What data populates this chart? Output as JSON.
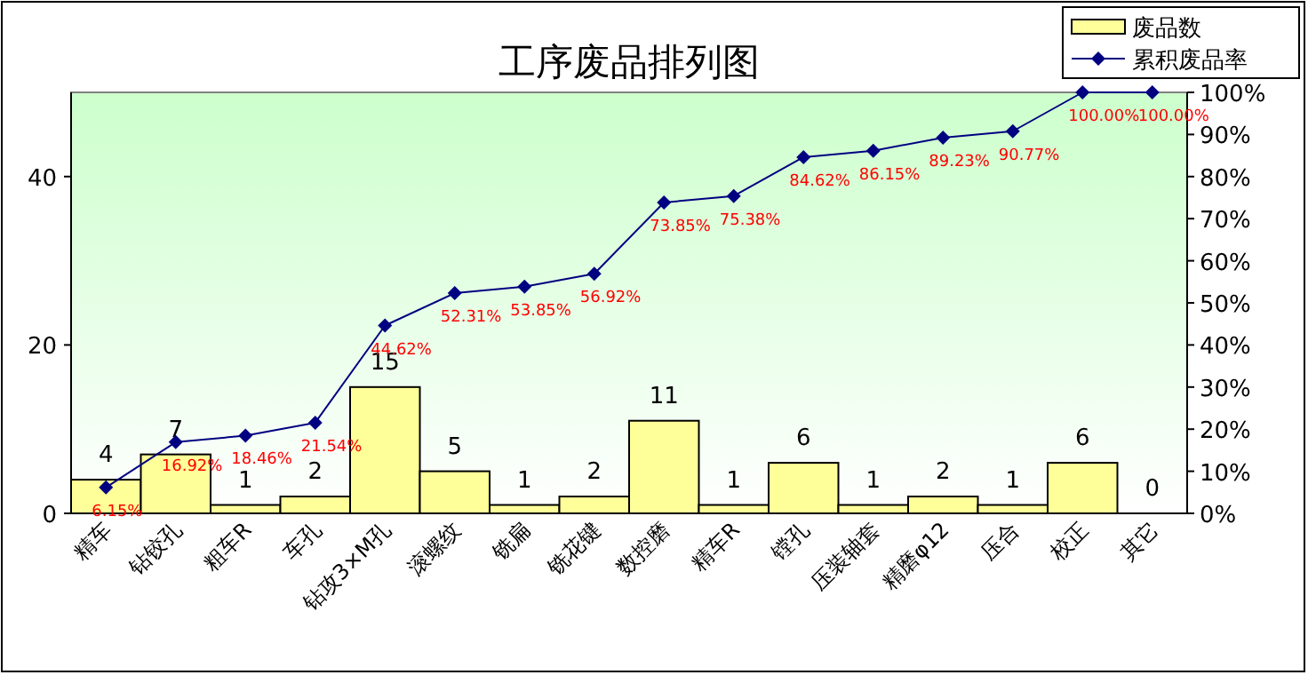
{
  "chart_data": {
    "type": "bar",
    "title": "工序废品排列图",
    "categories": [
      "精车",
      "钻铰孔",
      "粗车R",
      "车孔",
      "钻攻3×M孔",
      "滚螺纹",
      "铣扁",
      "铣花键",
      "数控磨",
      "精车R",
      "镗孔",
      "压装轴套",
      "精磨φ12",
      "压合",
      "校正",
      "其它"
    ],
    "series": [
      {
        "name": "废品数",
        "color": "#ffff99",
        "values": [
          4,
          7,
          1,
          2,
          15,
          5,
          1,
          2,
          11,
          1,
          6,
          1,
          2,
          1,
          6,
          0
        ],
        "value_labels": [
          "4",
          "7",
          "1",
          "2",
          "15",
          "5",
          "1",
          "2",
          "11",
          "1",
          "6",
          "1",
          "2",
          "1",
          "6",
          "0"
        ]
      },
      {
        "name": "累积废品率",
        "type": "line",
        "axis": "y2",
        "color": "#000080",
        "marker": "diamond",
        "values": [
          6.15,
          16.92,
          18.46,
          21.54,
          44.62,
          52.31,
          53.85,
          56.92,
          73.85,
          75.38,
          84.62,
          86.15,
          89.23,
          90.77,
          100,
          100
        ],
        "value_labels": [
          "6.15%",
          "16.92%",
          "18.46%",
          "21.54%",
          "44.62%",
          "52.31%",
          "53.85%",
          "56.92%",
          "73.85%",
          "75.38%",
          "84.62%",
          "86.15%",
          "89.23%",
          "90.77%",
          "100.00%",
          "100.00%"
        ]
      }
    ],
    "ylim": [
      0,
      50
    ],
    "yticks": [
      0,
      20,
      40
    ],
    "y2lim": [
      0,
      100
    ],
    "y2ticks": [
      {
        "value": 0,
        "label": "0%"
      },
      {
        "value": 10,
        "label": "10%"
      },
      {
        "value": 20,
        "label": "20%"
      },
      {
        "value": 30,
        "label": "30%"
      },
      {
        "value": 40,
        "label": "40%"
      },
      {
        "value": 50,
        "label": "50%"
      },
      {
        "value": 60,
        "label": "60%"
      },
      {
        "value": 70,
        "label": "70%"
      },
      {
        "value": 80,
        "label": "80%"
      },
      {
        "value": 90,
        "label": "90%"
      },
      {
        "value": 100,
        "label": "100%"
      }
    ],
    "legend": "top right"
  }
}
